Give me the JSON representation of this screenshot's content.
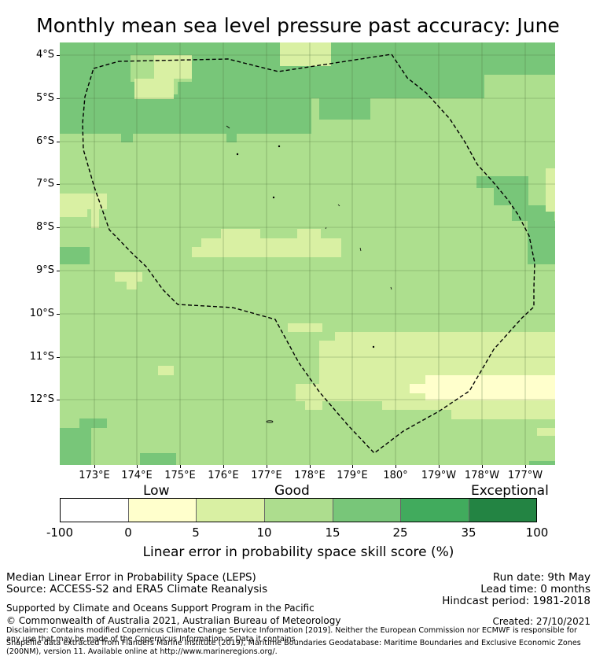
{
  "title": "Monthly mean sea level pressure past accuracy: June",
  "colorbar": {
    "categories": {
      "low": "Low",
      "good": "Good",
      "exceptional": "Exceptional"
    },
    "tick_labels": [
      "-100",
      "0",
      "5",
      "10",
      "15",
      "25",
      "35",
      "100"
    ],
    "colors": [
      "#ffffff",
      "#ffffcc",
      "#d9f0a3",
      "#addd8e",
      "#78c679",
      "#41ab5d",
      "#238443"
    ],
    "label": "Linear error in probability space skill score (%)"
  },
  "map": {
    "lat_labels": [
      "4°S",
      "5°S",
      "6°S",
      "7°S",
      "8°S",
      "9°S",
      "10°S",
      "11°S",
      "12°S"
    ],
    "lon_labels": [
      "173°E",
      "174°E",
      "175°E",
      "176°E",
      "177°E",
      "178°E",
      "179°E",
      "180°",
      "179°W",
      "178°W",
      "177°W"
    ],
    "boundary_style": "dashed",
    "grid": true
  },
  "info": {
    "method": "Median Linear Error in Probability Space (LEPS)",
    "source": "Source: ACCESS-S2 and ERA5 Climate Reanalysis",
    "run_date": "Run date: 9th May",
    "lead_time": "Lead time: 0 months",
    "hindcast": "Hindcast period: 1981-2018",
    "support": "Supported by Climate and Oceans Support Program in the Pacific",
    "copyright": "© Commonwealth of Australia 2021, Australian Bureau of Meteorology",
    "created": "Created: 27/10/2021",
    "disclaimer": "Disclaimer: Contains modified Copernicus Climate Change Service Information [2019]. Neither the European Commission nor ECMWF is responsible for any use that may be made of the Copernicus Information or Data it contains.",
    "shapefile": "Shapefile data extracted from Flanders Marine Institute (2019), Maritime Boundaries Geodatabase: Maritime Boundaries and Exclusive Economic Zones (200NM), version 11. Available online at http://www.marineregions.org/."
  }
}
